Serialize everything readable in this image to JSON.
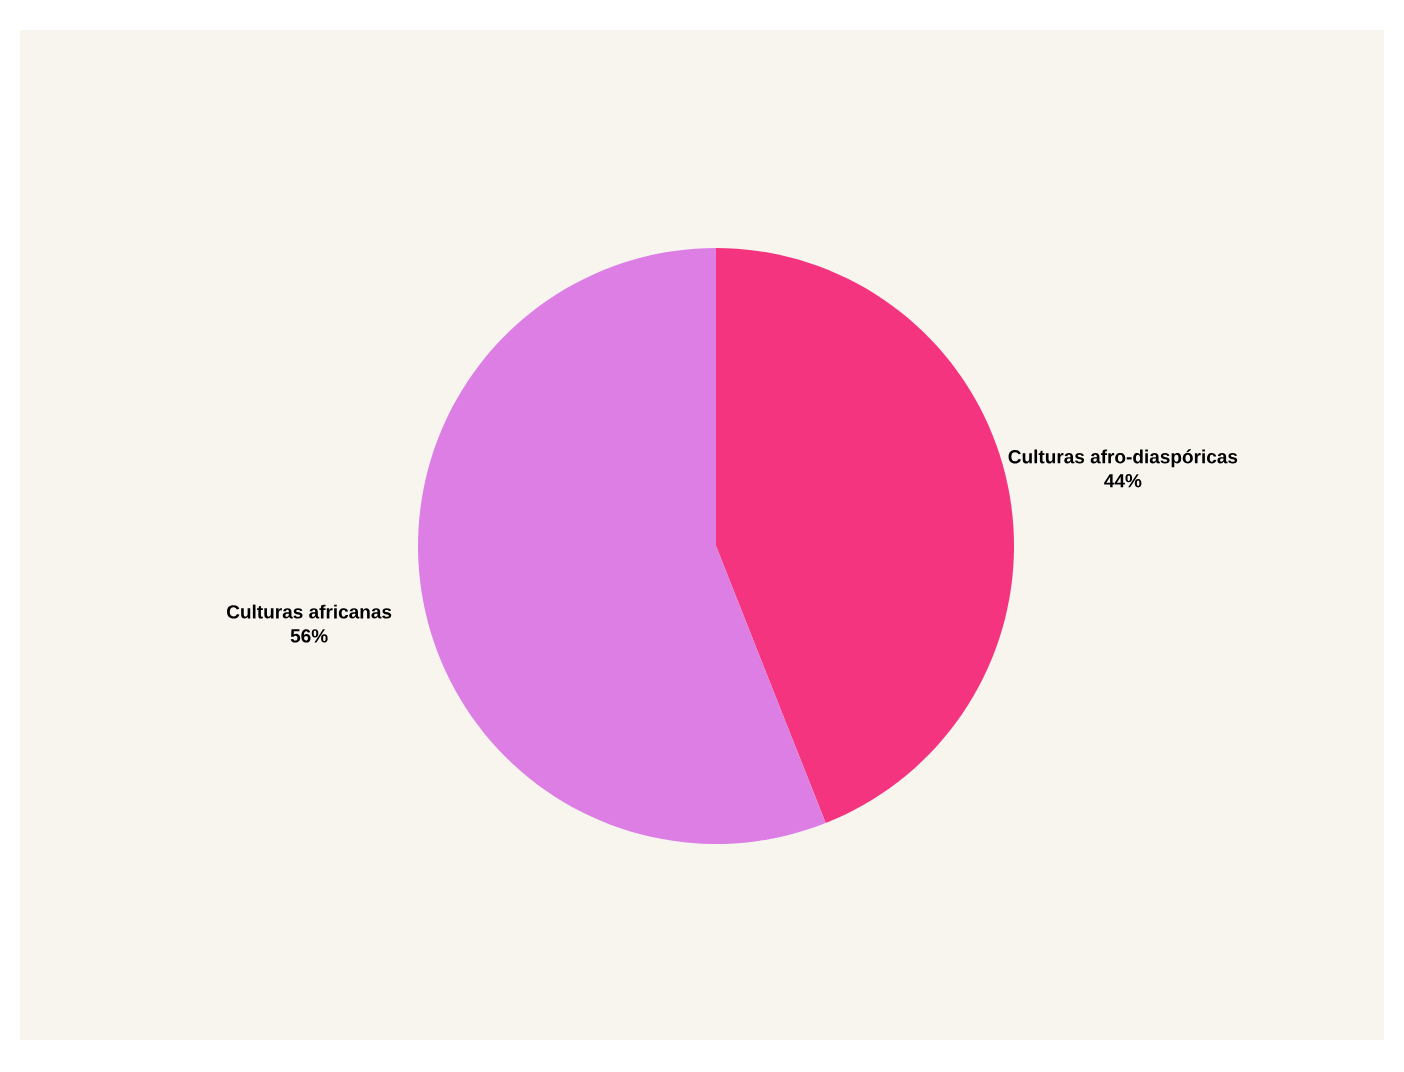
{
  "chart_data": {
    "type": "pie",
    "categories": [
      "Culturas afro-diaspóricas",
      "Culturas africanas"
    ],
    "values": [
      44,
      56
    ],
    "value_labels": [
      "44%",
      "56%"
    ],
    "colors": [
      "#f4347f",
      "#dc7ee4"
    ],
    "legend": false
  }
}
